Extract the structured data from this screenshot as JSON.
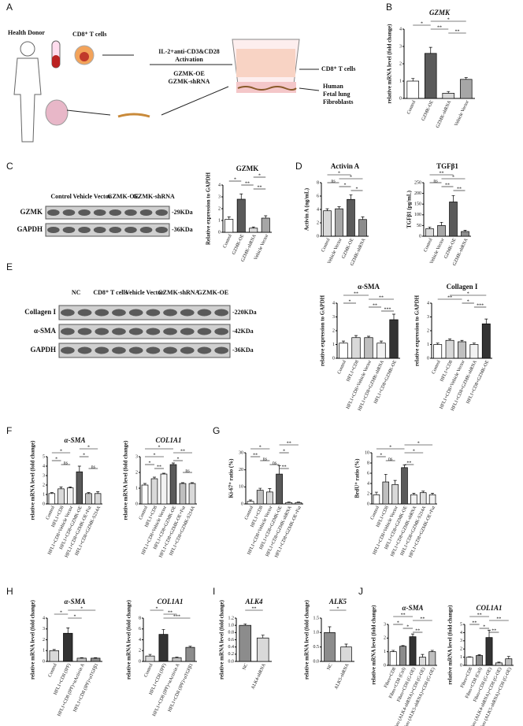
{
  "panel_letters": [
    "A",
    "B",
    "C",
    "D",
    "E",
    "F",
    "G",
    "H",
    "I",
    "J"
  ],
  "schematic": {
    "donor": "Health Donor",
    "cells": "CD8⁺ T cells",
    "treatment": "IL-2+anti-CD3&CD28",
    "activation": "Activation",
    "oe": "GZMK-OE",
    "sh": "GZMK-shRNA",
    "out_cells": "CD8⁺ T cells",
    "fibro": [
      "Human",
      "Fetal lung",
      "Fibroblasts"
    ]
  },
  "blot_c": {
    "lanes": [
      "Control",
      "Vehicle Vector",
      "GZMK-OE",
      "GZMK-shRNA"
    ],
    "rows": [
      "GZMK",
      "GAPDH"
    ],
    "sizes": [
      "-29KDa",
      "-36KDa"
    ]
  },
  "blot_e": {
    "lanes": [
      "NC",
      "CD8⁺ T cells",
      "Vehicle Vector",
      "GZMK-shRNA",
      "GZMK-OE"
    ],
    "rows": [
      "Collagen I",
      "α-SMA",
      "GAPDH"
    ],
    "sizes": [
      "-220KDa",
      "-42KDa",
      "-36KDa"
    ]
  },
  "chart_data": [
    {
      "type": "bar",
      "title": "GZMK",
      "ylabel": "relative mRNA level (fold change)",
      "categories": [
        "Control",
        "GZMK-OE",
        "GZMK-shRNA",
        "Vehicle Vector"
      ],
      "values": [
        1.0,
        2.6,
        0.3,
        1.1
      ],
      "errors": [
        0.15,
        0.35,
        0.1,
        0.1
      ],
      "colors": [
        "#ffffff",
        "#5a5a5a",
        "#d9d9d9",
        "#a6a6a6"
      ],
      "ylim": [
        0,
        4
      ],
      "yticks": [
        0,
        1,
        2,
        3,
        4
      ],
      "annotations": [
        {
          "label": "*",
          "from": 1,
          "to": 3
        },
        {
          "label": "*",
          "from": 0,
          "to": 1
        },
        {
          "label": "**",
          "from": 1,
          "to": 2
        },
        {
          "label": "**",
          "from": 2,
          "to": 3
        }
      ]
    },
    {
      "type": "bar",
      "title": "GZMK",
      "ylabel": "Relative expression to GAPDH",
      "categories": [
        "Control",
        "GZMK-OE",
        "GZMK-shRNA",
        "Vehicle Vector"
      ],
      "values": [
        1.1,
        2.8,
        0.35,
        1.2
      ],
      "errors": [
        0.2,
        0.45,
        0.1,
        0.2
      ],
      "colors": [
        "#ffffff",
        "#5a5a5a",
        "#d9d9d9",
        "#a6a6a6"
      ],
      "ylim": [
        0,
        4
      ],
      "yticks": [
        0,
        1,
        2,
        3,
        4
      ],
      "annotations": [
        {
          "label": "*",
          "from": 2,
          "to": 3
        },
        {
          "label": "*",
          "from": 0,
          "to": 1
        },
        {
          "label": "**",
          "from": 1,
          "to": 2
        },
        {
          "label": "**",
          "from": 2,
          "to": 3
        }
      ]
    },
    {
      "type": "bar",
      "title": "Activin A",
      "ylabel": "Activin A (ng/mL)",
      "categories": [
        "Control",
        "Vehicle Vector",
        "GZMK-OE",
        "GZMK-shRNA"
      ],
      "values": [
        3.8,
        4.1,
        5.5,
        2.5
      ],
      "errors": [
        0.3,
        0.3,
        0.7,
        0.4
      ],
      "colors": [
        "#d9d9d9",
        "#a6a6a6",
        "#5a5a5a",
        "#8c8c8c"
      ],
      "ylim": [
        0,
        8
      ],
      "yticks": [
        0,
        2,
        4,
        6,
        8
      ],
      "annotations": [
        {
          "label": "*",
          "from": 0,
          "to": 2
        },
        {
          "label": "*",
          "from": 1,
          "to": 3
        },
        {
          "label": "ns",
          "from": 0,
          "to": 1
        },
        {
          "label": "*",
          "from": 1,
          "to": 2
        },
        {
          "label": "*",
          "from": 2,
          "to": 3
        }
      ]
    },
    {
      "type": "bar",
      "title": "TGFβ1",
      "ylabel": "TGFβ1 (pg/mL)",
      "categories": [
        "Control",
        "Vehicle Vector",
        "GZMK-OE",
        "GZMK-shRNA"
      ],
      "values": [
        35,
        50,
        160,
        22
      ],
      "errors": [
        8,
        15,
        30,
        6
      ],
      "colors": [
        "#d9d9d9",
        "#a6a6a6",
        "#5a5a5a",
        "#8c8c8c"
      ],
      "ylim": [
        0,
        250
      ],
      "yticks": [
        0,
        50,
        100,
        150,
        200,
        250
      ],
      "annotations": [
        {
          "label": "**",
          "from": 0,
          "to": 2
        },
        {
          "label": "*",
          "from": 1,
          "to": 3
        },
        {
          "label": "ns",
          "from": 0,
          "to": 1
        },
        {
          "label": "**",
          "from": 1,
          "to": 2
        },
        {
          "label": "**",
          "from": 2,
          "to": 3
        }
      ]
    },
    {
      "type": "bar",
      "title": "α-SMA",
      "ylabel": "relative expression to GAPDH",
      "categories": [
        "Control",
        "HFL1+CD8",
        "HFL1+CD8+Vehicle Vector",
        "HFL1+CD8+GZMK-shRNA",
        "HFL1+CD8+GZMK-OE"
      ],
      "values": [
        1.1,
        1.5,
        1.5,
        1.1,
        2.8
      ],
      "errors": [
        0.15,
        0.15,
        0.1,
        0.15,
        0.4
      ],
      "colors": [
        "#ffffff",
        "#d9d9d9",
        "#bfbfbf",
        "#f2f2f2",
        "#333333"
      ],
      "ylim": [
        0,
        4
      ],
      "yticks": [
        0,
        1,
        2,
        3,
        4
      ],
      "annotations": [
        {
          "label": "**",
          "from": 0,
          "to": 2
        },
        {
          "label": "**",
          "from": 2,
          "to": 4
        },
        {
          "label": "*",
          "from": 0,
          "to": 1
        },
        {
          "label": "**",
          "from": 2,
          "to": 3
        },
        {
          "label": "***",
          "from": 3,
          "to": 4
        }
      ]
    },
    {
      "type": "bar",
      "title": "Collagen I",
      "ylabel": "relative expression to GAPDH",
      "categories": [
        "Control",
        "HFL1+CD8",
        "HFL1+CD8+Vehicle Vector",
        "HFL1+CD8+GZMK-shRNA",
        "HFL1+CD8+GZMK-OE"
      ],
      "values": [
        1.0,
        1.3,
        1.2,
        1.0,
        2.5
      ],
      "errors": [
        0.1,
        0.1,
        0.1,
        0.1,
        0.35
      ],
      "colors": [
        "#ffffff",
        "#d9d9d9",
        "#bfbfbf",
        "#f2f2f2",
        "#333333"
      ],
      "ylim": [
        0,
        4
      ],
      "yticks": [
        0,
        1,
        2,
        3,
        4
      ],
      "annotations": [
        {
          "label": "*",
          "from": 1,
          "to": 4
        },
        {
          "label": "**",
          "from": 0,
          "to": 2
        },
        {
          "label": "*",
          "from": 2,
          "to": 3
        },
        {
          "label": "***",
          "from": 3,
          "to": 4
        }
      ]
    },
    {
      "type": "bar",
      "title": "α-SMA",
      "ylabel": "relative mRNA level (fold change)",
      "categories": [
        "Control",
        "HFL1+CD8",
        "HFL1+CD8+Vehicle Vector",
        "HFL1+CD8+GZMK-OE",
        "HFL1+CD8+GZMK-OE+Fut",
        "HFL1+CD8+GZMK-S214A"
      ],
      "values": [
        1.1,
        1.6,
        1.7,
        3.4,
        1.1,
        1.1
      ],
      "errors": [
        0.1,
        0.2,
        0.1,
        0.6,
        0.1,
        0.2
      ],
      "colors": [
        "#ffffff",
        "#d9d9d9",
        "#f2f2f2",
        "#5a5a5a",
        "#bfbfbf",
        "#d9d9d9"
      ],
      "ylim": [
        0,
        5
      ],
      "yticks": [
        0,
        1,
        2,
        3,
        4,
        5
      ],
      "annotations": [
        {
          "label": "*",
          "from": 3,
          "to": 5
        },
        {
          "label": "*",
          "from": 0,
          "to": 2
        },
        {
          "label": "*",
          "from": 3,
          "to": 4
        },
        {
          "label": "*",
          "from": 0,
          "to": 1
        },
        {
          "label": "ns",
          "from": 1,
          "to": 2
        },
        {
          "label": "ns",
          "from": 4,
          "to": 5
        }
      ]
    },
    {
      "type": "bar",
      "title": "COL1A1",
      "ylabel": "relative mRNA level (fold change)",
      "categories": [
        "Control",
        "HFL1+CD8",
        "HFL1+CD8+Vehicle Vector",
        "HFL1+CD8+GZMK-OE",
        "HFL1+CD8+GZMK-OE+Fut",
        "HFL1+CD8+GZMK-S214A"
      ],
      "values": [
        1.2,
        1.6,
        1.9,
        2.5,
        1.3,
        1.3
      ],
      "errors": [
        0.1,
        0.1,
        0.05,
        0.1,
        0.05,
        0.05
      ],
      "colors": [
        "#ffffff",
        "#d9d9d9",
        "#f2f2f2",
        "#5a5a5a",
        "#bfbfbf",
        "#d9d9d9"
      ],
      "ylim": [
        0,
        3
      ],
      "yticks": [
        0,
        1,
        2,
        3
      ],
      "annotations": [
        {
          "label": "*",
          "from": 0,
          "to": 3
        },
        {
          "label": "**",
          "from": 3,
          "to": 5
        },
        {
          "label": "*",
          "from": 0,
          "to": 2
        },
        {
          "label": "*",
          "from": 3,
          "to": 4
        },
        {
          "label": "*",
          "from": 0,
          "to": 1
        },
        {
          "label": "**",
          "from": 1,
          "to": 2
        },
        {
          "label": "ns",
          "from": 4,
          "to": 5
        }
      ]
    },
    {
      "type": "bar",
      "title": null,
      "ylabel": "Ki-67⁺ ratio (%)",
      "categories": [
        "Control",
        "HFL1+CD8",
        "HFL1+CD8+Vehicle Vector",
        "HFL1+CD8+GZMK-OE",
        "HFL1+CD8+GZMK-shRNA",
        "HFL1+CD8+GZMK-OE+Fut"
      ],
      "values": [
        1.5,
        8,
        7,
        17.5,
        0.8,
        0.8
      ],
      "errors": [
        0.8,
        1.2,
        2,
        5,
        0.3,
        0.3
      ],
      "colors": [
        "#ffffff",
        "#bfbfbf",
        "#d9d9d9",
        "#5a5a5a",
        "#f2f2f2",
        "#e0e0e0"
      ],
      "ylim": [
        0,
        30
      ],
      "yticks": [
        0,
        10,
        20,
        30
      ],
      "annotations": [
        {
          "label": "**",
          "from": 3,
          "to": 5
        },
        {
          "label": "*",
          "from": 0,
          "to": 2
        },
        {
          "label": "*",
          "from": 3,
          "to": 4
        },
        {
          "label": "**",
          "from": 0,
          "to": 1
        },
        {
          "label": "ns",
          "from": 1,
          "to": 2
        },
        {
          "label": "ns",
          "from": 2,
          "to": 3
        },
        {
          "label": "**",
          "from": 3,
          "to": 4
        }
      ]
    },
    {
      "type": "bar",
      "title": null,
      "ylabel": "BrdU⁺ ratio (%)",
      "categories": [
        "Control",
        "HFL1+CD8",
        "HFL1+CD8+Vehicle Vector",
        "HFL1+CD8+GZMK-OE",
        "HFL1+CD8+GZMK-shRNA",
        "HFL1+CD8+GZMK-S214A",
        "HFL1+CD8+GZMK-OE+Fut"
      ],
      "values": [
        1.8,
        4.3,
        3.8,
        7.1,
        1.8,
        2.2,
        1.8
      ],
      "errors": [
        0.5,
        1.5,
        0.8,
        0.5,
        0.3,
        0.3,
        0.3
      ],
      "colors": [
        "#ffffff",
        "#bfbfbf",
        "#d9d9d9",
        "#5a5a5a",
        "#f2f2f2",
        "#e0e0e0",
        "#f2f2f2"
      ],
      "ylim": [
        0,
        10
      ],
      "yticks": [
        0,
        2,
        4,
        6,
        8,
        10
      ],
      "annotations": [
        {
          "label": "*",
          "from": 3,
          "to": 6
        },
        {
          "label": "*",
          "from": 0,
          "to": 3
        },
        {
          "label": "*",
          "from": 3,
          "to": 5
        },
        {
          "label": "*",
          "from": 0,
          "to": 1
        },
        {
          "label": "ns",
          "from": 1,
          "to": 2
        },
        {
          "label": "**",
          "from": 3,
          "to": 4
        }
      ]
    },
    {
      "type": "bar",
      "title": "α-SMA",
      "ylabel": "relative mRNA level (fold change)",
      "categories": [
        "Control",
        "HFL1+CD8 (IPF)",
        "HFL1+CD8 (IPF)+αActivin A",
        "HFL1+CD8 (IPF)+αTGFβ1"
      ],
      "values": [
        1.0,
        2.6,
        0.3,
        0.3
      ],
      "errors": [
        0.1,
        0.5,
        0.05,
        0.05
      ],
      "colors": [
        "#d9d9d9",
        "#333333",
        "#bfbfbf",
        "#8c8c8c"
      ],
      "ylim": [
        0,
        4
      ],
      "yticks": [
        0,
        1,
        2,
        3,
        4
      ],
      "annotations": [
        {
          "label": "*",
          "from": 1,
          "to": 3
        },
        {
          "label": "*",
          "from": 0,
          "to": 1
        },
        {
          "label": "*",
          "from": 1,
          "to": 2
        }
      ]
    },
    {
      "type": "bar",
      "title": "COL1A1",
      "ylabel": "relative mRNA level (fold change)",
      "categories": [
        "Control",
        "HFL1+CD8 (IPF)",
        "HFL1+CD8 (IPF)+αActivin A",
        "HFL1+CD8 (IPF)+αTGFβ1"
      ],
      "values": [
        1.0,
        5.0,
        0.7,
        2.6
      ],
      "errors": [
        0.3,
        0.9,
        0.1,
        0.2
      ],
      "colors": [
        "#d9d9d9",
        "#333333",
        "#bfbfbf",
        "#8c8c8c"
      ],
      "ylim": [
        0,
        8
      ],
      "yticks": [
        0,
        2,
        4,
        6,
        8
      ],
      "annotations": [
        {
          "label": "*",
          "from": 0,
          "to": 1
        },
        {
          "label": "**",
          "from": 1,
          "to": 2
        },
        {
          "label": "***",
          "from": 1,
          "to": 3
        }
      ]
    },
    {
      "type": "bar",
      "title": "ALK4",
      "ylabel": "relative mRNA level (fold change)",
      "categories": [
        "NC",
        "ALK4-shRNA"
      ],
      "values": [
        1.0,
        0.65
      ],
      "errors": [
        0.04,
        0.08
      ],
      "colors": [
        "#8c8c8c",
        "#d9d9d9"
      ],
      "ylim": [
        0,
        1.2
      ],
      "yticks": [
        {
          "value": 0,
          "label": "0.0"
        },
        0.2,
        0.4,
        0.6,
        0.8,
        {
          "value": 1,
          "label": "1.0"
        },
        1.2
      ],
      "annotations": [
        {
          "label": "**",
          "from": 0,
          "to": 1
        }
      ]
    },
    {
      "type": "bar",
      "title": "ALK5",
      "ylabel": "relative mRNA level (fold change)",
      "categories": [
        "NC",
        "ALK5-shRNA"
      ],
      "values": [
        1.0,
        0.5
      ],
      "errors": [
        0.2,
        0.1
      ],
      "colors": [
        "#8c8c8c",
        "#d9d9d9"
      ],
      "ylim": [
        0,
        1.5
      ],
      "yticks": [
        {
          "value": 0,
          "label": "0.0"
        },
        0.5,
        {
          "value": 1,
          "label": "1.0"
        },
        1.5
      ],
      "annotations": [
        {
          "label": "*",
          "from": 0,
          "to": 1
        }
      ]
    },
    {
      "type": "bar",
      "title": "α-SMA",
      "ylabel": "relative mRNA level (fold change)",
      "categories": [
        "Fibro+CD8",
        "Fibro+CD8 (Ctrl)",
        "Fibro+CD8 (G-OE)",
        "Fibro (ALK4-shRNA)+CD8 (G-OE)",
        "Fibro (ALK5-shRNA)+CD8 (G-OE)"
      ],
      "values": [
        1.0,
        1.4,
        2.1,
        0.6,
        1.0
      ],
      "errors": [
        0.1,
        0.05,
        0.2,
        0.2,
        0.1
      ],
      "colors": [
        "#ffffff",
        "#8c8c8c",
        "#333333",
        "#d9d9d9",
        "#bfbfbf"
      ],
      "ylim": [
        0,
        3
      ],
      "yticks": [
        0,
        1,
        2,
        3
      ],
      "annotations": [
        {
          "label": "**",
          "from": 0,
          "to": 2
        },
        {
          "label": "**",
          "from": 2,
          "to": 4
        },
        {
          "label": "*",
          "from": 0,
          "to": 1
        },
        {
          "label": "*",
          "from": 1,
          "to": 2
        },
        {
          "label": "**",
          "from": 2,
          "to": 3
        }
      ]
    },
    {
      "type": "bar",
      "title": "COL1A1",
      "ylabel": "relative mRNA level (fold change)",
      "categories": [
        "Fibro+CD8",
        "Fibro+CD8 (Ctrl)",
        "Fibro+CD8 (G-OE)",
        "Fibro (ALK4-shRNA)+CD8 (G-OE)",
        "Fibro (ALK5-shRNA)+CD8 (G-OE)"
      ],
      "values": [
        1.0,
        1.2,
        3.4,
        0.3,
        0.8
      ],
      "errors": [
        0.05,
        0.1,
        0.9,
        0.1,
        0.3
      ],
      "colors": [
        "#ffffff",
        "#8c8c8c",
        "#333333",
        "#d9d9d9",
        "#bfbfbf"
      ],
      "ylim": [
        0,
        5
      ],
      "yticks": [
        0,
        1,
        2,
        3,
        4,
        5
      ],
      "annotations": [
        {
          "label": "**",
          "from": 0,
          "to": 2
        },
        {
          "label": "**",
          "from": 2,
          "to": 4
        },
        {
          "label": "**",
          "from": 0,
          "to": 1
        },
        {
          "label": "*",
          "from": 1,
          "to": 2
        },
        {
          "label": "**",
          "from": 2,
          "to": 3
        }
      ]
    }
  ]
}
